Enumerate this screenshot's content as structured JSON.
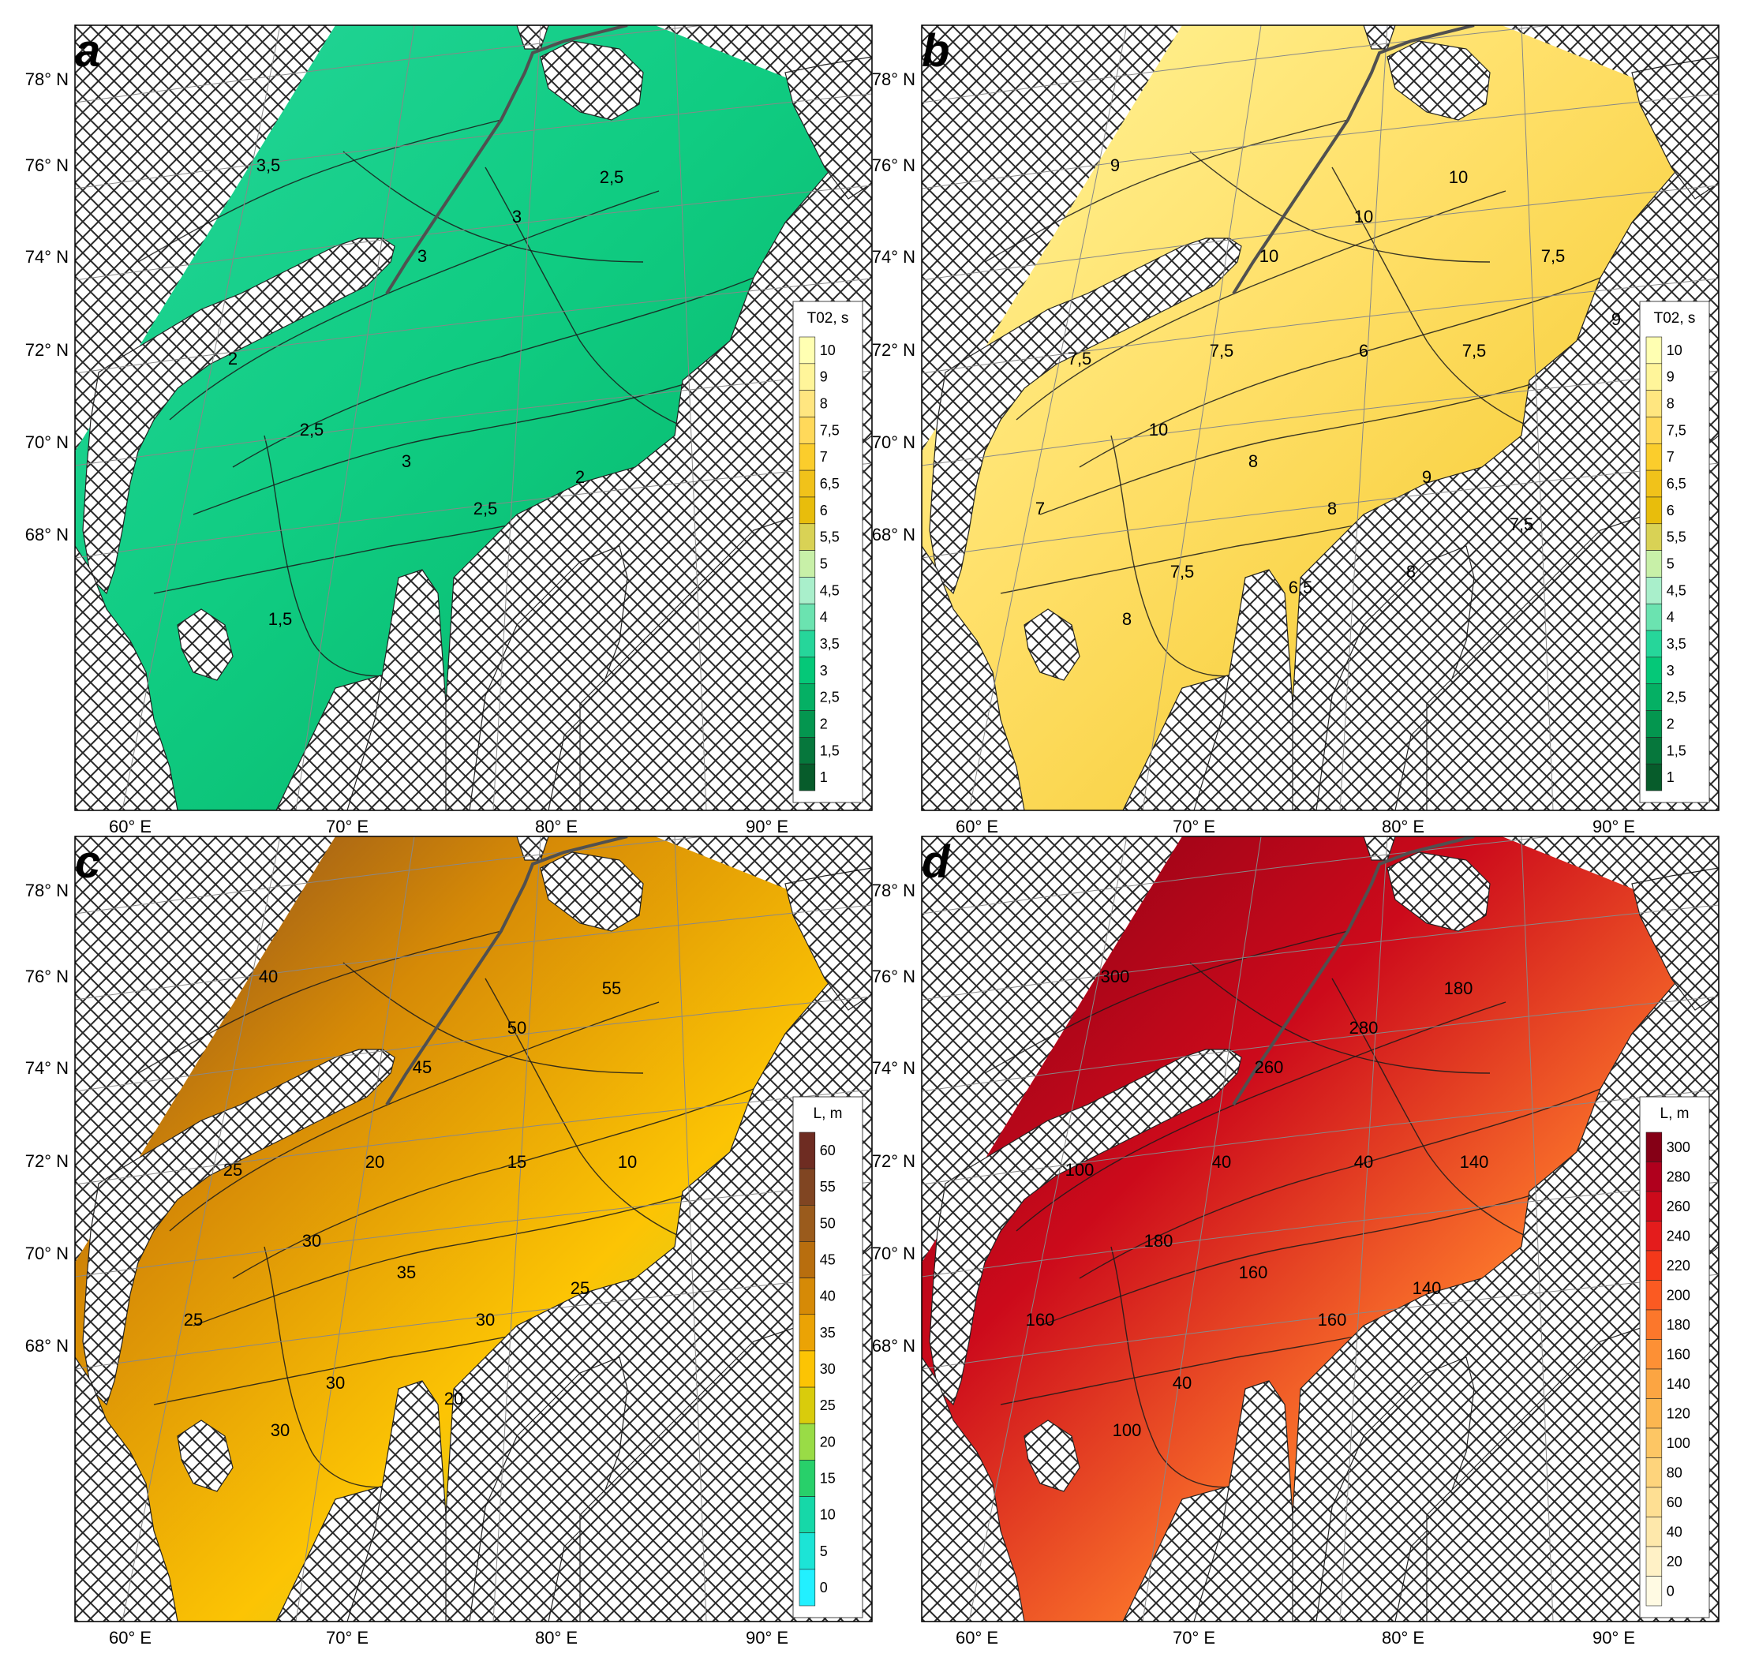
{
  "hatch_color": "#303030",
  "route_color": "#505050",
  "grid_color": "#888888",
  "lat_labels": [
    "78° N",
    "76° N",
    "74° N",
    "72° N",
    "70° N",
    "68° N"
  ],
  "lon_labels": [
    "60° E",
    "70° E",
    "80° E",
    "90° E"
  ],
  "panels": [
    {
      "id": "a",
      "label": "a",
      "scale": "green",
      "colorbar": {
        "title": "T02, s",
        "ticks": [
          "10",
          "9",
          "8",
          "7,5",
          "7",
          "6,5",
          "6",
          "5,5",
          "5",
          "4,5",
          "4",
          "3,5",
          "3",
          "2,5",
          "2",
          "1,5",
          "1"
        ],
        "colors": [
          "#ffffb2",
          "#fff59a",
          "#ffe680",
          "#ffd95a",
          "#fbcd2c",
          "#f1c21a",
          "#e8bd0c",
          "#d9d255",
          "#c8f0a8",
          "#a9efcb",
          "#6be3b0",
          "#26d69a",
          "#05c878",
          "#05b064",
          "#04964f",
          "#06773c",
          "#075c2b"
        ],
        "levels": [
          10,
          9,
          8,
          7.5,
          7,
          6.5,
          6,
          5.5,
          5,
          4.5,
          4,
          3.5,
          3,
          2.5,
          2,
          1.5,
          1
        ]
      },
      "contours": [
        "3,5",
        "3",
        "3",
        "2,5",
        "2,5",
        "3",
        "2,5",
        "2",
        "1,5",
        "2"
      ]
    },
    {
      "id": "b",
      "label": "b",
      "scale": "green",
      "colorbar": {
        "title": "T02, s",
        "ticks": [
          "10",
          "9",
          "8",
          "7,5",
          "7",
          "6,5",
          "6",
          "5,5",
          "5",
          "4,5",
          "4",
          "3,5",
          "3",
          "2,5",
          "2",
          "1,5",
          "1"
        ],
        "levels": [
          10,
          9,
          8,
          7.5,
          7,
          6.5,
          6,
          5.5,
          5,
          4.5,
          4,
          3.5,
          3,
          2.5,
          2,
          1.5,
          1
        ]
      },
      "contours": [
        "9",
        "10",
        "10",
        "10",
        "10",
        "8",
        "8",
        "9",
        "8",
        "7,5",
        "7,5",
        "6",
        "7,5",
        "7",
        "7,5",
        "6,5",
        "8",
        "7,5",
        "7,5",
        "9"
      ]
    },
    {
      "id": "c",
      "label": "c",
      "scale": "brown",
      "colorbar": {
        "title": "L, m",
        "ticks": [
          "60",
          "55",
          "50",
          "45",
          "40",
          "35",
          "30",
          "25",
          "20",
          "15",
          "10",
          "5",
          "0"
        ],
        "colors": [
          "#6e2c22",
          "#804522",
          "#9a5b1c",
          "#b86e0e",
          "#d68a06",
          "#eba305",
          "#fcc404",
          "#d9cc0c",
          "#99dc46",
          "#28d06a",
          "#16d8a8",
          "#1ce4d6",
          "#22f0ff"
        ],
        "levels": [
          60,
          55,
          50,
          45,
          40,
          35,
          30,
          25,
          20,
          15,
          10,
          5,
          0
        ]
      },
      "contours": [
        "40",
        "45",
        "50",
        "55",
        "30",
        "35",
        "30",
        "25",
        "30",
        "25",
        "20",
        "15",
        "10",
        "25",
        "30",
        "20"
      ]
    },
    {
      "id": "d",
      "label": "d",
      "scale": "red",
      "colorbar": {
        "title": "L, m",
        "ticks": [
          "300",
          "280",
          "260",
          "240",
          "220",
          "200",
          "180",
          "160",
          "140",
          "120",
          "100",
          "80",
          "60",
          "40",
          "20",
          "0"
        ],
        "colors": [
          "#850016",
          "#b0001d",
          "#cc0a1b",
          "#e41c1c",
          "#f4381a",
          "#fb5a22",
          "#fc772b",
          "#fd9035",
          "#fca542",
          "#fcb650",
          "#fdc664",
          "#fed47c",
          "#fedf93",
          "#fee8ab",
          "#fff1c6",
          "#fffae3"
        ],
        "levels": [
          300,
          280,
          260,
          240,
          220,
          200,
          180,
          160,
          140,
          120,
          100,
          80,
          60,
          40,
          20,
          0
        ]
      },
      "contours": [
        "300",
        "260",
        "280",
        "180",
        "180",
        "160",
        "160",
        "140",
        "100",
        "100",
        "40",
        "40",
        "140",
        "160",
        "40"
      ]
    }
  ]
}
